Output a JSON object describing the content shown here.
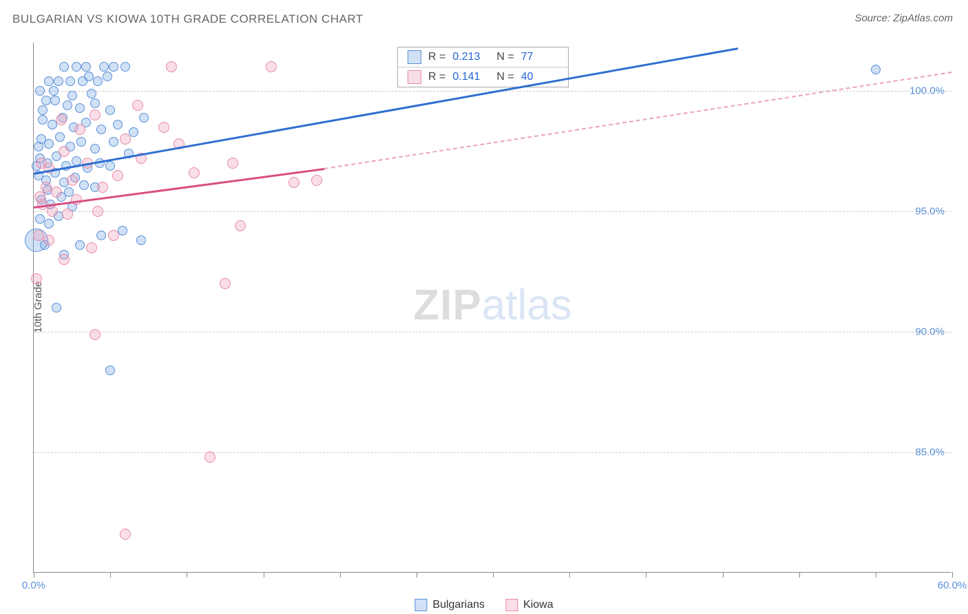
{
  "title": "BULGARIAN VS KIOWA 10TH GRADE CORRELATION CHART",
  "source": "Source: ZipAtlas.com",
  "ylabel": "10th Grade",
  "watermark": {
    "bold": "ZIP",
    "light": "atlas"
  },
  "chart": {
    "type": "scatter",
    "background_color": "#ffffff",
    "grid_color": "#cccccc",
    "axis_color": "#888888",
    "xlim": [
      0,
      60
    ],
    "ylim": [
      80,
      102
    ],
    "xticks": [
      0,
      5,
      10,
      15,
      20,
      25,
      30,
      35,
      40,
      45,
      50,
      55,
      60
    ],
    "xticks_labeled": [
      {
        "v": 0,
        "label": "0.0%"
      },
      {
        "v": 60,
        "label": "60.0%"
      }
    ],
    "yticks": [
      {
        "v": 85,
        "label": "85.0%"
      },
      {
        "v": 90,
        "label": "90.0%"
      },
      {
        "v": 95,
        "label": "95.0%"
      },
      {
        "v": 100,
        "label": "100.0%"
      }
    ],
    "tick_label_color": "#5b8fd6",
    "tick_label_fontsize": 15,
    "point_stroke_width": 1.2,
    "series": [
      {
        "name": "Bulgarians",
        "fill": "rgba(120,170,230,0.35)",
        "stroke": "#5b8fd6",
        "R": "0.213",
        "N": "77",
        "trend": {
          "x1": 0,
          "y1": 96.6,
          "x2": 46,
          "y2": 101.8,
          "color": "#2f6fd0",
          "width": 3
        },
        "points": [
          {
            "x": 0.2,
            "y": 93.8,
            "r": 17
          },
          {
            "x": 55.0,
            "y": 100.9,
            "r": 7
          },
          {
            "x": 2.0,
            "y": 101.0,
            "r": 7
          },
          {
            "x": 2.8,
            "y": 101.0,
            "r": 7
          },
          {
            "x": 3.4,
            "y": 101.0,
            "r": 7
          },
          {
            "x": 4.6,
            "y": 101.0,
            "r": 7
          },
          {
            "x": 5.2,
            "y": 101.0,
            "r": 7
          },
          {
            "x": 6.0,
            "y": 101.0,
            "r": 7
          },
          {
            "x": 1.0,
            "y": 100.4,
            "r": 7
          },
          {
            "x": 1.6,
            "y": 100.4,
            "r": 7
          },
          {
            "x": 2.4,
            "y": 100.4,
            "r": 7
          },
          {
            "x": 3.2,
            "y": 100.4,
            "r": 7
          },
          {
            "x": 4.2,
            "y": 100.4,
            "r": 7
          },
          {
            "x": 0.8,
            "y": 99.6,
            "r": 7
          },
          {
            "x": 1.4,
            "y": 99.6,
            "r": 7
          },
          {
            "x": 2.2,
            "y": 99.4,
            "r": 7
          },
          {
            "x": 3.0,
            "y": 99.3,
            "r": 7
          },
          {
            "x": 4.0,
            "y": 99.5,
            "r": 7
          },
          {
            "x": 5.0,
            "y": 99.2,
            "r": 7
          },
          {
            "x": 0.6,
            "y": 98.8,
            "r": 7
          },
          {
            "x": 1.2,
            "y": 98.6,
            "r": 7
          },
          {
            "x": 1.9,
            "y": 98.9,
            "r": 7
          },
          {
            "x": 2.6,
            "y": 98.5,
            "r": 7
          },
          {
            "x": 3.4,
            "y": 98.7,
            "r": 7
          },
          {
            "x": 4.4,
            "y": 98.4,
            "r": 7
          },
          {
            "x": 5.5,
            "y": 98.6,
            "r": 7
          },
          {
            "x": 6.5,
            "y": 98.3,
            "r": 7
          },
          {
            "x": 0.5,
            "y": 98.0,
            "r": 7
          },
          {
            "x": 1.0,
            "y": 97.8,
            "r": 7
          },
          {
            "x": 1.7,
            "y": 98.1,
            "r": 7
          },
          {
            "x": 2.4,
            "y": 97.7,
            "r": 7
          },
          {
            "x": 3.1,
            "y": 97.9,
            "r": 7
          },
          {
            "x": 4.0,
            "y": 97.6,
            "r": 7
          },
          {
            "x": 5.2,
            "y": 97.9,
            "r": 7
          },
          {
            "x": 0.4,
            "y": 97.2,
            "r": 7
          },
          {
            "x": 0.9,
            "y": 97.0,
            "r": 7
          },
          {
            "x": 1.5,
            "y": 97.3,
            "r": 7
          },
          {
            "x": 2.1,
            "y": 96.9,
            "r": 7
          },
          {
            "x": 2.8,
            "y": 97.1,
            "r": 7
          },
          {
            "x": 3.5,
            "y": 96.8,
            "r": 7
          },
          {
            "x": 4.3,
            "y": 97.0,
            "r": 7
          },
          {
            "x": 5.0,
            "y": 96.9,
            "r": 7
          },
          {
            "x": 0.3,
            "y": 96.5,
            "r": 7
          },
          {
            "x": 0.8,
            "y": 96.3,
            "r": 7
          },
          {
            "x": 1.4,
            "y": 96.6,
            "r": 7
          },
          {
            "x": 2.0,
            "y": 96.2,
            "r": 7
          },
          {
            "x": 2.7,
            "y": 96.4,
            "r": 7
          },
          {
            "x": 3.3,
            "y": 96.1,
            "r": 7
          },
          {
            "x": 4.0,
            "y": 96.0,
            "r": 7
          },
          {
            "x": 0.5,
            "y": 95.5,
            "r": 7
          },
          {
            "x": 1.1,
            "y": 95.3,
            "r": 7
          },
          {
            "x": 1.8,
            "y": 95.6,
            "r": 7
          },
          {
            "x": 2.5,
            "y": 95.2,
            "r": 7
          },
          {
            "x": 0.4,
            "y": 94.7,
            "r": 7
          },
          {
            "x": 1.0,
            "y": 94.5,
            "r": 7
          },
          {
            "x": 1.6,
            "y": 94.8,
            "r": 7
          },
          {
            "x": 5.8,
            "y": 94.2,
            "r": 7
          },
          {
            "x": 4.4,
            "y": 94.0,
            "r": 7
          },
          {
            "x": 0.7,
            "y": 93.6,
            "r": 7
          },
          {
            "x": 7.0,
            "y": 93.8,
            "r": 7
          },
          {
            "x": 2.0,
            "y": 93.2,
            "r": 7
          },
          {
            "x": 3.0,
            "y": 93.6,
            "r": 7
          },
          {
            "x": 1.5,
            "y": 91.0,
            "r": 7
          },
          {
            "x": 5.0,
            "y": 88.4,
            "r": 7
          },
          {
            "x": 2.5,
            "y": 99.8,
            "r": 7
          },
          {
            "x": 3.8,
            "y": 99.9,
            "r": 7
          },
          {
            "x": 1.3,
            "y": 100.0,
            "r": 7
          },
          {
            "x": 0.6,
            "y": 99.2,
            "r": 7
          },
          {
            "x": 6.2,
            "y": 97.4,
            "r": 7
          },
          {
            "x": 7.2,
            "y": 98.9,
            "r": 7
          },
          {
            "x": 0.9,
            "y": 95.9,
            "r": 7
          },
          {
            "x": 2.3,
            "y": 95.8,
            "r": 7
          },
          {
            "x": 0.3,
            "y": 97.7,
            "r": 7
          },
          {
            "x": 0.2,
            "y": 96.9,
            "r": 7
          },
          {
            "x": 3.6,
            "y": 100.6,
            "r": 7
          },
          {
            "x": 4.8,
            "y": 100.6,
            "r": 7
          },
          {
            "x": 0.4,
            "y": 100.0,
            "r": 7
          }
        ]
      },
      {
        "name": "Kiowa",
        "fill": "rgba(240,160,185,0.35)",
        "stroke": "#e68aa8",
        "R": "0.141",
        "N": "40",
        "trend_solid": {
          "x1": 0,
          "y1": 95.2,
          "x2": 19,
          "y2": 96.8,
          "color": "#d94f82",
          "width": 3
        },
        "trend_dash": {
          "x1": 19,
          "y1": 96.8,
          "x2": 60,
          "y2": 100.8,
          "color": "#e9a3bd",
          "width": 2
        },
        "points": [
          {
            "x": 9.0,
            "y": 101.0,
            "r": 8
          },
          {
            "x": 15.5,
            "y": 101.0,
            "r": 8
          },
          {
            "x": 4.0,
            "y": 99.0,
            "r": 8
          },
          {
            "x": 6.0,
            "y": 98.0,
            "r": 8
          },
          {
            "x": 8.5,
            "y": 98.5,
            "r": 8
          },
          {
            "x": 2.0,
            "y": 97.5,
            "r": 8
          },
          {
            "x": 3.5,
            "y": 97.0,
            "r": 8
          },
          {
            "x": 5.5,
            "y": 96.5,
            "r": 8
          },
          {
            "x": 1.0,
            "y": 96.8,
            "r": 8
          },
          {
            "x": 2.5,
            "y": 96.3,
            "r": 8
          },
          {
            "x": 4.5,
            "y": 96.0,
            "r": 8
          },
          {
            "x": 10.5,
            "y": 96.6,
            "r": 8
          },
          {
            "x": 13.0,
            "y": 97.0,
            "r": 8
          },
          {
            "x": 17.0,
            "y": 96.2,
            "r": 8
          },
          {
            "x": 18.5,
            "y": 96.3,
            "r": 8
          },
          {
            "x": 0.8,
            "y": 96.0,
            "r": 8
          },
          {
            "x": 1.5,
            "y": 95.8,
            "r": 8
          },
          {
            "x": 2.8,
            "y": 95.5,
            "r": 8
          },
          {
            "x": 0.6,
            "y": 95.3,
            "r": 8
          },
          {
            "x": 1.2,
            "y": 95.0,
            "r": 8
          },
          {
            "x": 2.2,
            "y": 94.9,
            "r": 8
          },
          {
            "x": 0.3,
            "y": 94.0,
            "r": 8
          },
          {
            "x": 1.0,
            "y": 93.8,
            "r": 8
          },
          {
            "x": 5.2,
            "y": 94.0,
            "r": 8
          },
          {
            "x": 13.5,
            "y": 94.4,
            "r": 8
          },
          {
            "x": 0.2,
            "y": 92.2,
            "r": 8
          },
          {
            "x": 12.5,
            "y": 92.0,
            "r": 8
          },
          {
            "x": 4.0,
            "y": 89.9,
            "r": 8
          },
          {
            "x": 11.5,
            "y": 84.8,
            "r": 8
          },
          {
            "x": 6.0,
            "y": 81.6,
            "r": 8
          },
          {
            "x": 3.0,
            "y": 98.4,
            "r": 8
          },
          {
            "x": 7.0,
            "y": 97.2,
            "r": 8
          },
          {
            "x": 1.8,
            "y": 98.8,
            "r": 8
          },
          {
            "x": 0.5,
            "y": 97.0,
            "r": 8
          },
          {
            "x": 4.2,
            "y": 95.0,
            "r": 8
          },
          {
            "x": 2.0,
            "y": 93.0,
            "r": 8
          },
          {
            "x": 6.8,
            "y": 99.4,
            "r": 8
          },
          {
            "x": 9.5,
            "y": 97.8,
            "r": 8
          },
          {
            "x": 0.4,
            "y": 95.6,
            "r": 8
          },
          {
            "x": 3.8,
            "y": 93.5,
            "r": 8
          }
        ]
      }
    ]
  },
  "rbox": {
    "rows": [
      {
        "swatch_fill": "rgba(120,170,230,0.35)",
        "swatch_stroke": "#5b8fd6",
        "R": "0.213",
        "N": "77"
      },
      {
        "swatch_fill": "rgba(240,160,185,0.35)",
        "swatch_stroke": "#e68aa8",
        "R": "0.141",
        "N": "40"
      }
    ]
  },
  "bottom_legend": [
    {
      "label": "Bulgarians",
      "fill": "rgba(120,170,230,0.35)",
      "stroke": "#5b8fd6"
    },
    {
      "label": "Kiowa",
      "fill": "rgba(240,160,185,0.35)",
      "stroke": "#e68aa8"
    }
  ]
}
